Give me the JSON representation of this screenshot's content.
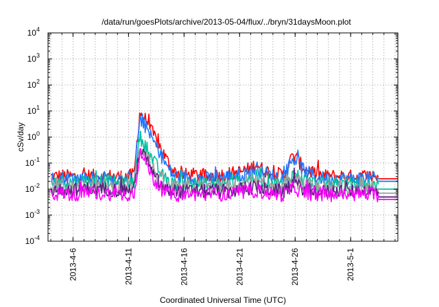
{
  "chart_data": {
    "type": "line",
    "title": "/data/run/goesPlots/archive/2013-05-04/flux/../bryn/31daysMoon.plot",
    "xlabel": "Coordinated Universal Time (UTC)",
    "ylabel": "cSv/day",
    "x_range": [
      "2013-04-03T18:00",
      "2013-05-05T06:00"
    ],
    "y_scale": "log",
    "ylim": [
      0.0001,
      10000
    ],
    "grid": true,
    "legend": "none",
    "x_ticks": [
      {
        "date": "2013-04-06",
        "label": "2013-4-6"
      },
      {
        "date": "2013-04-11",
        "label": "2013-4-11"
      },
      {
        "date": "2013-04-16",
        "label": "2013-4-16"
      },
      {
        "date": "2013-04-21",
        "label": "2013-4-21"
      },
      {
        "date": "2013-04-26",
        "label": "2013-4-26"
      },
      {
        "date": "2013-05-01",
        "label": "2013-5-1"
      }
    ],
    "y_ticks": [
      {
        "value": 0.0001,
        "base": "10",
        "exp": "-4"
      },
      {
        "value": 0.001,
        "base": "10",
        "exp": "-3"
      },
      {
        "value": 0.01,
        "base": "10",
        "exp": "-2"
      },
      {
        "value": 0.1,
        "base": "10",
        "exp": "-1"
      },
      {
        "value": 1,
        "base": "10",
        "exp": "0"
      },
      {
        "value": 10,
        "base": "10",
        "exp": "1"
      },
      {
        "value": 100,
        "base": "10",
        "exp": "2"
      },
      {
        "value": 1000,
        "base": "10",
        "exp": "3"
      },
      {
        "value": 10000,
        "base": "10",
        "exp": "4"
      }
    ],
    "series": [
      {
        "color": "#ff0000",
        "end_level": 0.025,
        "points": [
          [
            "2013-04-04",
            0.03
          ],
          [
            "2013-04-05",
            0.032
          ],
          [
            "2013-04-06",
            0.03
          ],
          [
            "2013-04-07",
            0.033
          ],
          [
            "2013-04-08",
            0.031
          ],
          [
            "2013-04-09",
            0.032
          ],
          [
            "2013-04-10",
            0.03
          ],
          [
            "2013-04-11",
            0.031
          ],
          [
            "2013-04-11T12:00",
            0.035
          ],
          [
            "2013-04-12",
            8.5
          ],
          [
            "2013-04-12T08:00",
            6.0
          ],
          [
            "2013-04-12T20:00",
            3.0
          ],
          [
            "2013-04-13",
            1.8
          ],
          [
            "2013-04-13T12:00",
            0.8
          ],
          [
            "2013-04-14",
            0.3
          ],
          [
            "2013-04-14T12:00",
            0.12
          ],
          [
            "2013-04-15",
            0.05
          ],
          [
            "2013-04-16",
            0.035
          ],
          [
            "2013-04-17",
            0.035
          ],
          [
            "2013-04-18",
            0.03
          ],
          [
            "2013-04-19",
            0.035
          ],
          [
            "2013-04-20",
            0.038
          ],
          [
            "2013-04-21",
            0.045
          ],
          [
            "2013-04-22",
            0.06
          ],
          [
            "2013-04-22T12:00",
            0.1
          ],
          [
            "2013-04-23",
            0.06
          ],
          [
            "2013-04-24",
            0.04
          ],
          [
            "2013-04-25",
            0.035
          ],
          [
            "2013-04-25T12:00",
            0.12
          ],
          [
            "2013-04-26",
            0.2
          ],
          [
            "2013-04-26T12:00",
            0.09
          ],
          [
            "2013-04-27",
            0.06
          ],
          [
            "2013-04-28",
            0.035
          ],
          [
            "2013-04-29",
            0.03
          ],
          [
            "2013-04-30",
            0.032
          ],
          [
            "2013-05-01",
            0.03
          ],
          [
            "2013-05-02",
            0.032
          ],
          [
            "2013-05-03",
            0.03
          ],
          [
            "2013-05-03T12:00",
            0.03
          ]
        ]
      },
      {
        "color": "#1e78ff",
        "end_level": 0.02,
        "points": [
          [
            "2013-04-04",
            0.025
          ],
          [
            "2013-04-05",
            0.027
          ],
          [
            "2013-04-06",
            0.025
          ],
          [
            "2013-04-07",
            0.028
          ],
          [
            "2013-04-08",
            0.026
          ],
          [
            "2013-04-09",
            0.027
          ],
          [
            "2013-04-10",
            0.025
          ],
          [
            "2013-04-11",
            0.026
          ],
          [
            "2013-04-11T12:00",
            0.03
          ],
          [
            "2013-04-12",
            4.5
          ],
          [
            "2013-04-12T08:00",
            3.2
          ],
          [
            "2013-04-12T20:00",
            1.6
          ],
          [
            "2013-04-13",
            1.0
          ],
          [
            "2013-04-13T12:00",
            0.45
          ],
          [
            "2013-04-14",
            0.18
          ],
          [
            "2013-04-14T12:00",
            0.07
          ],
          [
            "2013-04-15",
            0.035
          ],
          [
            "2013-04-16",
            0.028
          ],
          [
            "2013-04-17",
            0.028
          ],
          [
            "2013-04-18",
            0.025
          ],
          [
            "2013-04-19",
            0.028
          ],
          [
            "2013-04-20",
            0.03
          ],
          [
            "2013-04-21",
            0.035
          ],
          [
            "2013-04-22",
            0.045
          ],
          [
            "2013-04-22T12:00",
            0.07
          ],
          [
            "2013-04-23",
            0.045
          ],
          [
            "2013-04-24",
            0.032
          ],
          [
            "2013-04-25",
            0.028
          ],
          [
            "2013-04-25T12:00",
            0.09
          ],
          [
            "2013-04-26",
            0.15
          ],
          [
            "2013-04-26T12:00",
            0.07
          ],
          [
            "2013-04-27",
            0.045
          ],
          [
            "2013-04-28",
            0.028
          ],
          [
            "2013-04-29",
            0.025
          ],
          [
            "2013-04-30",
            0.027
          ],
          [
            "2013-05-01",
            0.025
          ],
          [
            "2013-05-02",
            0.027
          ],
          [
            "2013-05-03",
            0.025
          ],
          [
            "2013-05-03T12:00",
            0.025
          ]
        ]
      },
      {
        "color": "#00c0a0",
        "end_level": 0.01,
        "points": [
          [
            "2013-04-04",
            0.018
          ],
          [
            "2013-04-05",
            0.02
          ],
          [
            "2013-04-06",
            0.018
          ],
          [
            "2013-04-07",
            0.021
          ],
          [
            "2013-04-08",
            0.019
          ],
          [
            "2013-04-09",
            0.02
          ],
          [
            "2013-04-10",
            0.018
          ],
          [
            "2013-04-11",
            0.019
          ],
          [
            "2013-04-11T12:00",
            0.02
          ],
          [
            "2013-04-12",
            1.1
          ],
          [
            "2013-04-12T08:00",
            0.6
          ],
          [
            "2013-04-12T20:00",
            0.3
          ],
          [
            "2013-04-13",
            0.18
          ],
          [
            "2013-04-13T12:00",
            0.08
          ],
          [
            "2013-04-14",
            0.035
          ],
          [
            "2013-04-14T12:00",
            0.02
          ],
          [
            "2013-04-15",
            0.016
          ],
          [
            "2013-04-16",
            0.016
          ],
          [
            "2013-04-17",
            0.017
          ],
          [
            "2013-04-18",
            0.015
          ],
          [
            "2013-04-19",
            0.017
          ],
          [
            "2013-04-20",
            0.016
          ],
          [
            "2013-04-21",
            0.02
          ],
          [
            "2013-04-22",
            0.025
          ],
          [
            "2013-04-22T12:00",
            0.03
          ],
          [
            "2013-04-23",
            0.022
          ],
          [
            "2013-04-24",
            0.018
          ],
          [
            "2013-04-25",
            0.016
          ],
          [
            "2013-04-25T12:00",
            0.03
          ],
          [
            "2013-04-26",
            0.04
          ],
          [
            "2013-04-26T12:00",
            0.025
          ],
          [
            "2013-04-27",
            0.02
          ],
          [
            "2013-04-28",
            0.016
          ],
          [
            "2013-04-29",
            0.015
          ],
          [
            "2013-04-30",
            0.016
          ],
          [
            "2013-05-01",
            0.015
          ],
          [
            "2013-05-02",
            0.016
          ],
          [
            "2013-05-03",
            0.015
          ],
          [
            "2013-05-03T12:00",
            0.015
          ]
        ]
      },
      {
        "color": "#a0a0a0",
        "end_level": 0.007,
        "points": [
          [
            "2013-04-04",
            0.012
          ],
          [
            "2013-04-05",
            0.014
          ],
          [
            "2013-04-06",
            0.012
          ],
          [
            "2013-04-07",
            0.015
          ],
          [
            "2013-04-08",
            0.013
          ],
          [
            "2013-04-09",
            0.014
          ],
          [
            "2013-04-10",
            0.012
          ],
          [
            "2013-04-11",
            0.013
          ],
          [
            "2013-04-11T12:00",
            0.014
          ],
          [
            "2013-04-12",
            0.5
          ],
          [
            "2013-04-12T08:00",
            0.3
          ],
          [
            "2013-04-12T20:00",
            0.15
          ],
          [
            "2013-04-13",
            0.08
          ],
          [
            "2013-04-13T12:00",
            0.04
          ],
          [
            "2013-04-14",
            0.02
          ],
          [
            "2013-04-14T12:00",
            0.013
          ],
          [
            "2013-04-15",
            0.011
          ],
          [
            "2013-04-16",
            0.011
          ],
          [
            "2013-04-17",
            0.012
          ],
          [
            "2013-04-18",
            0.011
          ],
          [
            "2013-04-19",
            0.012
          ],
          [
            "2013-04-20",
            0.011
          ],
          [
            "2013-04-21",
            0.013
          ],
          [
            "2013-04-22",
            0.016
          ],
          [
            "2013-04-22T12:00",
            0.018
          ],
          [
            "2013-04-23",
            0.014
          ],
          [
            "2013-04-24",
            0.012
          ],
          [
            "2013-04-25",
            0.011
          ],
          [
            "2013-04-25T12:00",
            0.018
          ],
          [
            "2013-04-26",
            0.022
          ],
          [
            "2013-04-26T12:00",
            0.016
          ],
          [
            "2013-04-27",
            0.013
          ],
          [
            "2013-04-28",
            0.011
          ],
          [
            "2013-04-29",
            0.011
          ],
          [
            "2013-04-30",
            0.012
          ],
          [
            "2013-05-01",
            0.011
          ],
          [
            "2013-05-02",
            0.012
          ],
          [
            "2013-05-03",
            0.011
          ],
          [
            "2013-05-03T12:00",
            0.011
          ]
        ]
      },
      {
        "color": "#5a2080",
        "end_level": 0.005,
        "points": [
          [
            "2013-04-04",
            0.009
          ],
          [
            "2013-04-05",
            0.01
          ],
          [
            "2013-04-06",
            0.009
          ],
          [
            "2013-04-07",
            0.011
          ],
          [
            "2013-04-08",
            0.0095
          ],
          [
            "2013-04-09",
            0.01
          ],
          [
            "2013-04-10",
            0.009
          ],
          [
            "2013-04-11",
            0.0095
          ],
          [
            "2013-04-11T12:00",
            0.01
          ],
          [
            "2013-04-12",
            0.35
          ],
          [
            "2013-04-12T08:00",
            0.2
          ],
          [
            "2013-04-12T20:00",
            0.1
          ],
          [
            "2013-04-13",
            0.05
          ],
          [
            "2013-04-13T12:00",
            0.025
          ],
          [
            "2013-04-14",
            0.013
          ],
          [
            "2013-04-14T12:00",
            0.009
          ],
          [
            "2013-04-15",
            0.008
          ],
          [
            "2013-04-16",
            0.008
          ],
          [
            "2013-04-17",
            0.009
          ],
          [
            "2013-04-18",
            0.008
          ],
          [
            "2013-04-19",
            0.009
          ],
          [
            "2013-04-20",
            0.008
          ],
          [
            "2013-04-21",
            0.0095
          ],
          [
            "2013-04-22",
            0.011
          ],
          [
            "2013-04-22T12:00",
            0.013
          ],
          [
            "2013-04-23",
            0.01
          ],
          [
            "2013-04-24",
            0.009
          ],
          [
            "2013-04-25",
            0.008
          ],
          [
            "2013-04-25T12:00",
            0.013
          ],
          [
            "2013-04-26",
            0.016
          ],
          [
            "2013-04-26T12:00",
            0.012
          ],
          [
            "2013-04-27",
            0.0095
          ],
          [
            "2013-04-28",
            0.008
          ],
          [
            "2013-04-29",
            0.008
          ],
          [
            "2013-04-30",
            0.009
          ],
          [
            "2013-05-01",
            0.008
          ],
          [
            "2013-05-02",
            0.009
          ],
          [
            "2013-05-03",
            0.008
          ],
          [
            "2013-05-03T12:00",
            0.008
          ]
        ]
      },
      {
        "color": "#ff00ff",
        "end_level": 0.004,
        "points": [
          [
            "2013-04-04",
            0.006
          ],
          [
            "2013-04-05",
            0.007
          ],
          [
            "2013-04-06",
            0.006
          ],
          [
            "2013-04-07",
            0.0075
          ],
          [
            "2013-04-08",
            0.0065
          ],
          [
            "2013-04-09",
            0.007
          ],
          [
            "2013-04-10",
            0.006
          ],
          [
            "2013-04-11",
            0.0065
          ],
          [
            "2013-04-11T12:00",
            0.007
          ],
          [
            "2013-04-12",
            0.25
          ],
          [
            "2013-04-12T08:00",
            0.14
          ],
          [
            "2013-04-12T20:00",
            0.07
          ],
          [
            "2013-04-13",
            0.035
          ],
          [
            "2013-04-13T12:00",
            0.018
          ],
          [
            "2013-04-14",
            0.01
          ],
          [
            "2013-04-14T12:00",
            0.007
          ],
          [
            "2013-04-15",
            0.006
          ],
          [
            "2013-04-16",
            0.006
          ],
          [
            "2013-04-17",
            0.0065
          ],
          [
            "2013-04-18",
            0.006
          ],
          [
            "2013-04-19",
            0.0065
          ],
          [
            "2013-04-20",
            0.006
          ],
          [
            "2013-04-21",
            0.007
          ],
          [
            "2013-04-22",
            0.008
          ],
          [
            "2013-04-22T12:00",
            0.009
          ],
          [
            "2013-04-23",
            0.0075
          ],
          [
            "2013-04-24",
            0.0065
          ],
          [
            "2013-04-25",
            0.006
          ],
          [
            "2013-04-25T12:00",
            0.009
          ],
          [
            "2013-04-26",
            0.011
          ],
          [
            "2013-04-26T12:00",
            0.008
          ],
          [
            "2013-04-27",
            0.007
          ],
          [
            "2013-04-28",
            0.006
          ],
          [
            "2013-04-29",
            0.006
          ],
          [
            "2013-04-30",
            0.0065
          ],
          [
            "2013-05-01",
            0.006
          ],
          [
            "2013-05-02",
            0.0065
          ],
          [
            "2013-05-03",
            0.006
          ],
          [
            "2013-05-03T12:00",
            0.006
          ]
        ]
      }
    ]
  }
}
